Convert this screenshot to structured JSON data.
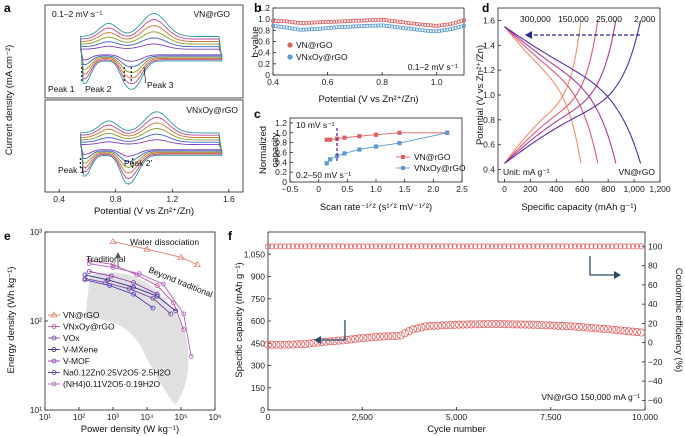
{
  "figure": {
    "panel_letters": [
      "a",
      "b",
      "c",
      "d",
      "e",
      "f"
    ]
  },
  "chart_data": [
    {
      "panel": "a",
      "type": "line",
      "title": "",
      "xlabel": "Potential (V vs Zn²⁺/Zn)",
      "ylabel": "Current density (mA cm⁻²)",
      "xticks": [
        "0.4",
        "0.8",
        "1.2",
        "1.6"
      ],
      "xlim": [
        0.3,
        1.7
      ],
      "top_label": "VN@rGO",
      "bottom_label": "VNxOy@rGO",
      "scan_note": "0.1–2 mV s⁻¹",
      "peaks_top": [
        "Peak 1",
        "Peak 2",
        "Peak 3"
      ],
      "peaks_bottom": [
        "Peak 1′",
        "Peak 2′"
      ],
      "scan_colors": [
        "#7a3fbf",
        "#3a5fcf",
        "#8a9a2a",
        "#d07030",
        "#c0409a",
        "#2a9a9a"
      ]
    },
    {
      "panel": "b",
      "type": "scatter",
      "xlabel": "Potential (V vs Zn²⁺/Zn)",
      "ylabel": "b-value",
      "xlim": [
        0.4,
        1.1
      ],
      "ylim": [
        0.0,
        1.2
      ],
      "xticks": [
        "0.4",
        "0.6",
        "0.8",
        "1.0"
      ],
      "yticks": [
        "0",
        "0.2",
        "0.4",
        "0.6",
        "0.8",
        "1.0",
        "1.2"
      ],
      "scan_note": "0.1–2 mV s⁻¹",
      "series": [
        {
          "name": "VN@rGO",
          "color": "#e06060",
          "x": [
            0.4,
            0.45,
            0.5,
            0.55,
            0.6,
            0.65,
            0.7,
            0.75,
            0.8,
            0.85,
            0.9,
            0.95,
            1.0,
            1.05,
            1.1
          ],
          "values": [
            0.97,
            0.96,
            0.93,
            0.94,
            0.95,
            0.96,
            0.97,
            0.98,
            0.99,
            0.96,
            0.93,
            0.9,
            0.88,
            0.91,
            0.98
          ]
        },
        {
          "name": "VNxOy@rGO",
          "color": "#5a9ad6",
          "x": [
            0.4,
            0.45,
            0.5,
            0.55,
            0.6,
            0.65,
            0.7,
            0.75,
            0.8,
            0.85,
            0.9,
            0.95,
            1.0,
            1.05,
            1.1
          ],
          "values": [
            0.88,
            0.85,
            0.81,
            0.82,
            0.84,
            0.86,
            0.87,
            0.88,
            0.89,
            0.86,
            0.83,
            0.8,
            0.78,
            0.82,
            0.88
          ]
        }
      ]
    },
    {
      "panel": "c",
      "type": "scatter",
      "xlabel": "Scan rate⁻¹ᐟ² (s¹ᐟ² mV⁻¹ᐟ²)",
      "ylabel": "Normalized capacity",
      "xlim": [
        -0.5,
        2.5
      ],
      "ylim": [
        0.0,
        1.3
      ],
      "xticks": [
        "−0.5",
        "0",
        "0.5",
        "1.0",
        "1.5",
        "2.0",
        "2.5"
      ],
      "yticks": [
        "0",
        "0.2",
        "0.4",
        "0.6",
        "0.8",
        "1.0",
        "1.2"
      ],
      "rate_label": "10 mV s⁻¹",
      "range_note": "0.2–50 mV s⁻¹",
      "series": [
        {
          "name": "VN@rGO",
          "color": "#e06060",
          "x": [
            0.14,
            0.2,
            0.32,
            0.45,
            0.71,
            1.0,
            1.41,
            2.24
          ],
          "values": [
            0.86,
            0.86,
            0.88,
            0.9,
            0.93,
            0.96,
            1.0,
            1.0
          ]
        },
        {
          "name": "VNxOy@rGO",
          "color": "#5a9ad6",
          "x": [
            0.14,
            0.2,
            0.32,
            0.45,
            0.71,
            1.0,
            1.41,
            2.24
          ],
          "values": [
            0.38,
            0.46,
            0.53,
            0.58,
            0.66,
            0.72,
            0.79,
            1.0
          ]
        }
      ]
    },
    {
      "panel": "d",
      "type": "line",
      "xlabel": "Specific capacity (mAh g⁻¹)",
      "ylabel": "Potential (V vs Zn²⁺/Zn)",
      "xlim": [
        -50,
        1200
      ],
      "ylim": [
        0.3,
        1.7
      ],
      "xticks": [
        "0",
        "200",
        "400",
        "600",
        "800",
        "1,000",
        "1,200"
      ],
      "yticks": [
        "0.4",
        "0.6",
        "0.8",
        "1.0",
        "1.2",
        "1.4",
        "1.6"
      ],
      "rates_label": [
        "300,000",
        "150,000",
        "25,000",
        "2,000"
      ],
      "unit_note": "Unit: mA g⁻¹",
      "material_label": "VN@rGO",
      "series": [
        {
          "name": "300,000",
          "color": "#f0906a",
          "max_capacity": 590
        },
        {
          "name": "150,000",
          "color": "#e05a7a",
          "max_capacity": 720
        },
        {
          "name": "25,000",
          "color": "#b03a9a",
          "max_capacity": 860
        },
        {
          "name": "2,000",
          "color": "#5a2aa8",
          "max_capacity": 1050
        }
      ]
    },
    {
      "panel": "e",
      "type": "line",
      "xlabel": "Power density (W kg⁻¹)",
      "ylabel": "Energy density (Wh kg⁻¹)",
      "xscale": "log",
      "yscale": "log",
      "xlim": [
        10,
        1000000
      ],
      "ylim": [
        10,
        1000
      ],
      "xticks": [
        "10¹",
        "10²",
        "10³",
        "10⁴",
        "10⁵",
        "10⁶"
      ],
      "yticks": [
        "10¹",
        "10²",
        "10³"
      ],
      "annotations": [
        "Traditional",
        "Beyond traditional",
        "Water dissociation"
      ],
      "series": [
        {
          "name": "VN@rGO",
          "color": "#e08070",
          "x": [
            1000,
            10000,
            100000,
            300000
          ],
          "values": [
            780,
            640,
            520,
            430
          ]
        },
        {
          "name": "VNxOy@rGO",
          "color": "#c050a8",
          "x": [
            200,
            1000,
            5000,
            20000,
            60000,
            120000
          ],
          "values": [
            480,
            430,
            330,
            250,
            160,
            80
          ]
        },
        {
          "name": "VOx",
          "color": "#7a4aa8",
          "x": [
            150,
            600,
            3000,
            15000,
            50000
          ],
          "values": [
            300,
            270,
            230,
            180,
            120
          ]
        },
        {
          "name": "V-MXene",
          "color": "#3a2a9a",
          "x": [
            150,
            700,
            4000,
            20000,
            70000
          ],
          "values": [
            330,
            290,
            240,
            190,
            130
          ]
        },
        {
          "name": "V-MOF",
          "color": "#8a3ab0",
          "x": [
            200,
            900,
            4000,
            20000
          ],
          "values": [
            360,
            320,
            270,
            200
          ]
        },
        {
          "name": "Na0.12Zn0.25V2O5·2.5H2O",
          "color": "#5a3ac0",
          "x": [
            150,
            800,
            4000,
            15000
          ],
          "values": [
            290,
            250,
            200,
            140
          ]
        },
        {
          "name": "(NH4)0.11V2O5·0.19H2O",
          "color": "#b060c0",
          "x": [
            200,
            1000,
            6000,
            30000,
            120000,
            200000
          ],
          "values": [
            440,
            400,
            340,
            260,
            120,
            40
          ]
        }
      ],
      "legend": [
        "VN@rGO",
        "VNxOy@rGO",
        "VOx",
        "V-MXene",
        "V-MOF",
        "Na0.12Zn0.25V2O5·2.5H2O",
        "(NH4)0.11V2O5·0.19H2O"
      ]
    },
    {
      "panel": "f",
      "type": "scatter",
      "xlabel": "Cycle number",
      "ylabel": "Specific capacity (mAh g⁻¹)",
      "y2label": "Coulombic efficiency (%)",
      "xlim": [
        0,
        10000
      ],
      "ylim": [
        0,
        1200
      ],
      "y2lim": [
        -70,
        115
      ],
      "xticks": [
        "0",
        "2,500",
        "5,000",
        "7,500",
        "10,000"
      ],
      "yticks": [
        "0",
        "150",
        "300",
        "450",
        "600",
        "750",
        "900",
        "1,050"
      ],
      "y2ticks": [
        "−60",
        "−40",
        "−20",
        "0",
        "20",
        "40",
        "60",
        "80",
        "100"
      ],
      "note": "VN@rGO 150,000 mA g⁻¹",
      "color": "#e06060",
      "capacity_points": [
        [
          0,
          440
        ],
        [
          500,
          440
        ],
        [
          1000,
          445
        ],
        [
          1500,
          460
        ],
        [
          2000,
          470
        ],
        [
          2500,
          485
        ],
        [
          3000,
          495
        ],
        [
          3500,
          500
        ],
        [
          3800,
          540
        ],
        [
          4200,
          565
        ],
        [
          5000,
          575
        ],
        [
          6000,
          580
        ],
        [
          7000,
          575
        ],
        [
          8000,
          565
        ],
        [
          9000,
          545
        ],
        [
          10000,
          520
        ]
      ],
      "efficiency": 100
    }
  ]
}
